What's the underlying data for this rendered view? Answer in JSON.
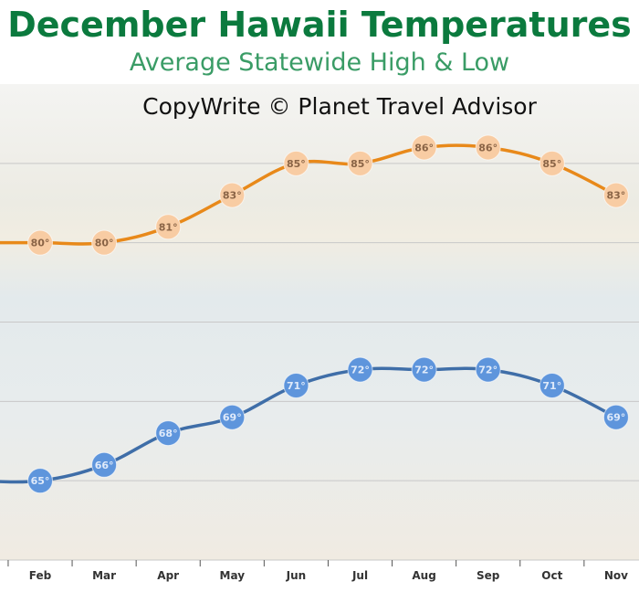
{
  "chart_data": {
    "type": "line",
    "title": "December Hawaii Temperatures",
    "subtitle": "Average Statewide High & Low",
    "annotation": "CopyWrite © Planet Travel Advisor",
    "categories": [
      null,
      "Feb",
      "Mar",
      "Apr",
      "May",
      "Jun",
      "Jul",
      "Aug",
      "Sep",
      "Oct",
      "Nov"
    ],
    "series": [
      {
        "color": "#e8891a",
        "marker_color": "#f8cca3",
        "values": [
          80,
          80,
          80,
          81,
          83,
          85,
          85,
          86,
          86,
          85,
          83
        ],
        "value_labels": [
          null,
          "80°",
          "80°",
          "81°",
          "83°",
          "85°",
          "85°",
          "86°",
          "86°",
          "85°",
          "83°"
        ]
      },
      {
        "color": "#3f6ea8",
        "marker_color": "#5e95dc",
        "values": [
          65,
          65,
          66,
          68,
          69,
          71,
          72,
          72,
          72,
          71,
          69
        ],
        "value_labels": [
          null,
          "65°",
          "66°",
          "68°",
          "69°",
          "71°",
          "72°",
          "72°",
          "72°",
          "71°",
          "69°"
        ]
      }
    ],
    "ylim": [
      60,
      90
    ],
    "yticks": [
      60,
      65,
      70,
      75,
      80,
      85
    ],
    "grid": true
  }
}
